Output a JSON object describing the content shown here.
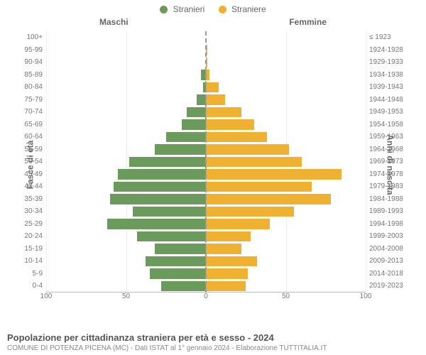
{
  "legend": {
    "male": "Stranieri",
    "female": "Straniere"
  },
  "columns": {
    "left": "Maschi",
    "right": "Femmine"
  },
  "axis_titles": {
    "left": "Fasce di età",
    "right": "Anni di nascita"
  },
  "colors": {
    "male": "#6a9a5c",
    "female": "#f0b133",
    "grid": "#eeeeee",
    "axis": "#bbbbbb",
    "text": "#666666",
    "background": "#ffffff"
  },
  "x_axis": {
    "max": 100,
    "ticks": [
      100,
      50,
      0,
      50,
      100
    ]
  },
  "rows": [
    {
      "age": "100+",
      "birth": "≤ 1923",
      "m": 0,
      "f": 0
    },
    {
      "age": "95-99",
      "birth": "1924-1928",
      "m": 0,
      "f": 1
    },
    {
      "age": "90-94",
      "birth": "1929-1933",
      "m": 0,
      "f": 1
    },
    {
      "age": "85-89",
      "birth": "1934-1938",
      "m": 3,
      "f": 2
    },
    {
      "age": "80-84",
      "birth": "1939-1943",
      "m": 2,
      "f": 8
    },
    {
      "age": "75-79",
      "birth": "1944-1948",
      "m": 6,
      "f": 12
    },
    {
      "age": "70-74",
      "birth": "1949-1953",
      "m": 12,
      "f": 22
    },
    {
      "age": "65-69",
      "birth": "1954-1958",
      "m": 15,
      "f": 30
    },
    {
      "age": "60-64",
      "birth": "1959-1963",
      "m": 25,
      "f": 38
    },
    {
      "age": "55-59",
      "birth": "1964-1968",
      "m": 32,
      "f": 52
    },
    {
      "age": "50-54",
      "birth": "1969-1973",
      "m": 48,
      "f": 60
    },
    {
      "age": "45-49",
      "birth": "1974-1978",
      "m": 55,
      "f": 85
    },
    {
      "age": "40-44",
      "birth": "1979-1983",
      "m": 58,
      "f": 66
    },
    {
      "age": "35-39",
      "birth": "1984-1988",
      "m": 60,
      "f": 78
    },
    {
      "age": "30-34",
      "birth": "1989-1993",
      "m": 46,
      "f": 55
    },
    {
      "age": "25-29",
      "birth": "1994-1998",
      "m": 62,
      "f": 40
    },
    {
      "age": "20-24",
      "birth": "1999-2003",
      "m": 43,
      "f": 28
    },
    {
      "age": "15-19",
      "birth": "2004-2008",
      "m": 32,
      "f": 22
    },
    {
      "age": "10-14",
      "birth": "2009-2013",
      "m": 38,
      "f": 32
    },
    {
      "age": "5-9",
      "birth": "2014-2018",
      "m": 35,
      "f": 26
    },
    {
      "age": "0-4",
      "birth": "2019-2023",
      "m": 28,
      "f": 25
    }
  ],
  "footer": {
    "title": "Popolazione per cittadinanza straniera per età e sesso - 2024",
    "subtitle": "COMUNE DI POTENZA PICENA (MC) - Dati ISTAT al 1° gennaio 2024 - Elaborazione TUTTITALIA.IT"
  },
  "typography": {
    "legend_fontsize": 12,
    "label_fontsize": 10,
    "title_fontsize": 13,
    "subtitle_fontsize": 10
  }
}
